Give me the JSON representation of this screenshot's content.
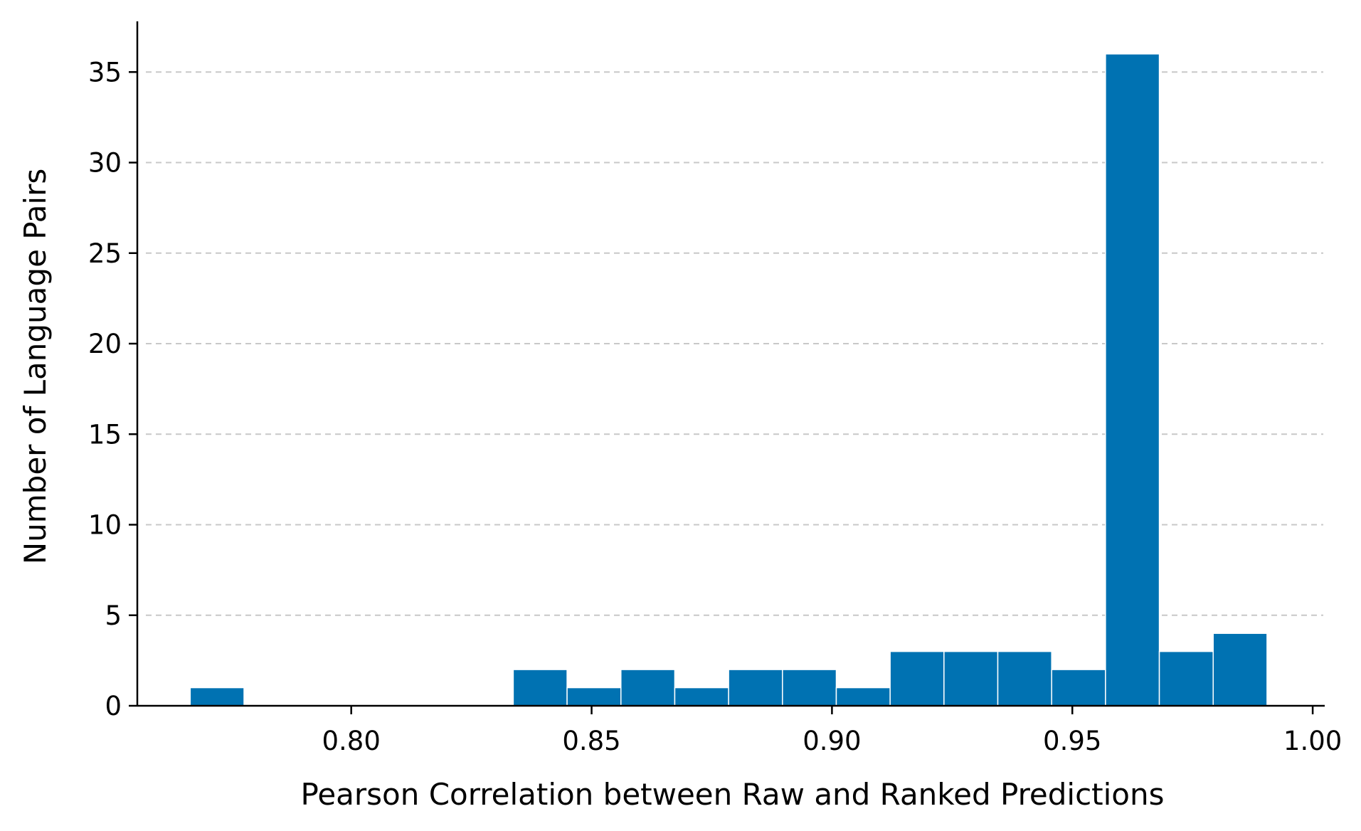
{
  "chart_data": {
    "type": "bar",
    "subtype": "histogram",
    "xlabel": "Pearson Correlation between Raw and Ranked Predictions",
    "ylabel": "Number of Language Pairs",
    "xlim": [
      0.7555,
      1.0025
    ],
    "ylim": [
      0,
      37.8
    ],
    "xticks": [
      0.8,
      0.85,
      0.9,
      0.95,
      1.0
    ],
    "xtick_labels": [
      "0.80",
      "0.85",
      "0.90",
      "0.95",
      "1.00"
    ],
    "yticks": [
      0,
      5,
      10,
      15,
      20,
      25,
      30,
      35
    ],
    "ytick_labels": [
      "0",
      "5",
      "10",
      "15",
      "20",
      "25",
      "30",
      "35"
    ],
    "grid": "y-dashed",
    "bin_edges": [
      0.7665,
      0.7777,
      0.7889,
      0.8001,
      0.8113,
      0.8225,
      0.8337,
      0.8449,
      0.8561,
      0.8673,
      0.8785,
      0.8897,
      0.9009,
      0.9121,
      0.9233,
      0.9345,
      0.9457,
      0.9569,
      0.9681,
      0.9793,
      0.9905
    ],
    "values": [
      1,
      0,
      0,
      0,
      0,
      0,
      2,
      1,
      2,
      1,
      2,
      2,
      1,
      3,
      3,
      3,
      2,
      36,
      3,
      4
    ],
    "colors": {
      "bar": "#0072b2",
      "grid": "#c8c8c8",
      "axis": "#000000"
    }
  }
}
